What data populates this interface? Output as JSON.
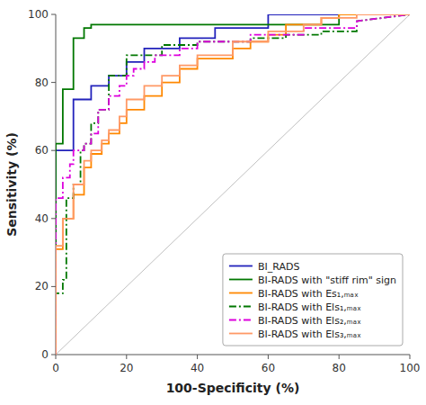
{
  "chart_data": {
    "type": "line",
    "xlabel": "100-Specificity (%)",
    "ylabel": "Sensitivity (%)",
    "xlim": [
      0,
      100
    ],
    "ylim": [
      0,
      100
    ],
    "xticks": [
      0,
      20,
      40,
      60,
      80,
      100
    ],
    "yticks": [
      0,
      20,
      40,
      60,
      80,
      100
    ],
    "legend": "lower right",
    "diagonal": {
      "color": "#c0c0c0",
      "x": [
        0,
        100
      ],
      "values": [
        0,
        100
      ]
    },
    "series": [
      {
        "name": "BI_RADS",
        "color": "#2222bb",
        "line_style": "solid",
        "x": [
          0,
          0,
          5,
          5,
          10,
          10,
          15,
          15,
          20,
          20,
          25,
          25,
          35,
          35,
          45,
          45,
          60,
          60,
          75,
          75,
          100
        ],
        "values": [
          0,
          60,
          60,
          75,
          75,
          79,
          79,
          82,
          82,
          86,
          86,
          90,
          90,
          93,
          93,
          96,
          96,
          100,
          100,
          100,
          100
        ]
      },
      {
        "name": "BI-RADS with \"stiff rim\" sign",
        "color": "#007700",
        "line_style": "solid",
        "x": [
          0,
          0,
          2,
          2,
          5,
          5,
          8,
          8,
          10,
          10,
          80,
          80,
          90,
          90,
          100
        ],
        "values": [
          0,
          62,
          62,
          78,
          78,
          93,
          93,
          96,
          96,
          97,
          97,
          100,
          100,
          100,
          100
        ]
      },
      {
        "name": "BI-RADS with Es₁,ₘₐₓ",
        "color": "#ff8800",
        "line_style": "solid",
        "x": [
          0,
          0,
          2,
          2,
          5,
          5,
          8,
          8,
          10,
          10,
          13,
          13,
          15,
          15,
          18,
          18,
          20,
          20,
          25,
          25,
          30,
          30,
          35,
          35,
          40,
          40,
          50,
          50,
          55,
          55,
          60,
          60,
          65,
          65,
          75,
          75,
          80,
          80,
          100
        ],
        "values": [
          0,
          31,
          31,
          40,
          40,
          47,
          47,
          55,
          55,
          59,
          59,
          62,
          62,
          65,
          65,
          68,
          68,
          72,
          72,
          76,
          76,
          80,
          80,
          84,
          84,
          87,
          87,
          90,
          90,
          92,
          92,
          94,
          94,
          97,
          97,
          99,
          99,
          100,
          100
        ]
      },
      {
        "name": "BI-RADS with Els₁,ₘₐₓ",
        "color": "#007700",
        "line_style": "dashdot",
        "x": [
          0,
          0,
          2,
          2,
          3,
          3,
          5,
          5,
          7,
          7,
          8,
          8,
          10,
          10,
          12,
          12,
          15,
          15,
          20,
          20,
          30,
          30,
          40,
          40,
          55,
          55,
          65,
          65,
          75,
          75,
          85,
          85,
          100
        ],
        "values": [
          0,
          18,
          18,
          22,
          22,
          46,
          46,
          50,
          50,
          60,
          60,
          62,
          62,
          68,
          68,
          72,
          72,
          82,
          82,
          88,
          88,
          91,
          91,
          92,
          92,
          93,
          93,
          94,
          94,
          95,
          95,
          98,
          100
        ]
      },
      {
        "name": "BI-RADS with Els₂,ₘₐₓ",
        "color": "#dd00dd",
        "line_style": "dashdot",
        "x": [
          0,
          0,
          2,
          2,
          4,
          4,
          5,
          5,
          8,
          8,
          10,
          10,
          12,
          12,
          15,
          15,
          18,
          18,
          20,
          20,
          22,
          22,
          25,
          25,
          28,
          28,
          35,
          35,
          40,
          40,
          55,
          55,
          70,
          70,
          85,
          85,
          100
        ],
        "values": [
          0,
          46,
          46,
          52,
          52,
          56,
          56,
          60,
          60,
          62,
          62,
          65,
          65,
          72,
          72,
          76,
          76,
          79,
          79,
          82,
          82,
          84,
          84,
          86,
          86,
          88,
          88,
          90,
          90,
          92,
          92,
          94,
          94,
          96,
          96,
          98,
          100
        ]
      },
      {
        "name": "BI-RADS with Els₃,ₘₐₓ",
        "color": "#ff9966",
        "line_style": "solid",
        "x": [
          0,
          0,
          2,
          2,
          5,
          5,
          8,
          8,
          10,
          10,
          13,
          13,
          15,
          15,
          18,
          18,
          20,
          20,
          25,
          25,
          30,
          30,
          35,
          35,
          40,
          40,
          50,
          50,
          60,
          60,
          70,
          70,
          75,
          75,
          85,
          85,
          100
        ],
        "values": [
          0,
          32,
          32,
          40,
          40,
          50,
          50,
          57,
          57,
          60,
          60,
          63,
          63,
          66,
          66,
          70,
          70,
          75,
          75,
          79,
          79,
          82,
          82,
          85,
          85,
          88,
          88,
          92,
          92,
          95,
          95,
          97,
          97,
          99,
          99,
          100,
          100
        ]
      }
    ]
  }
}
